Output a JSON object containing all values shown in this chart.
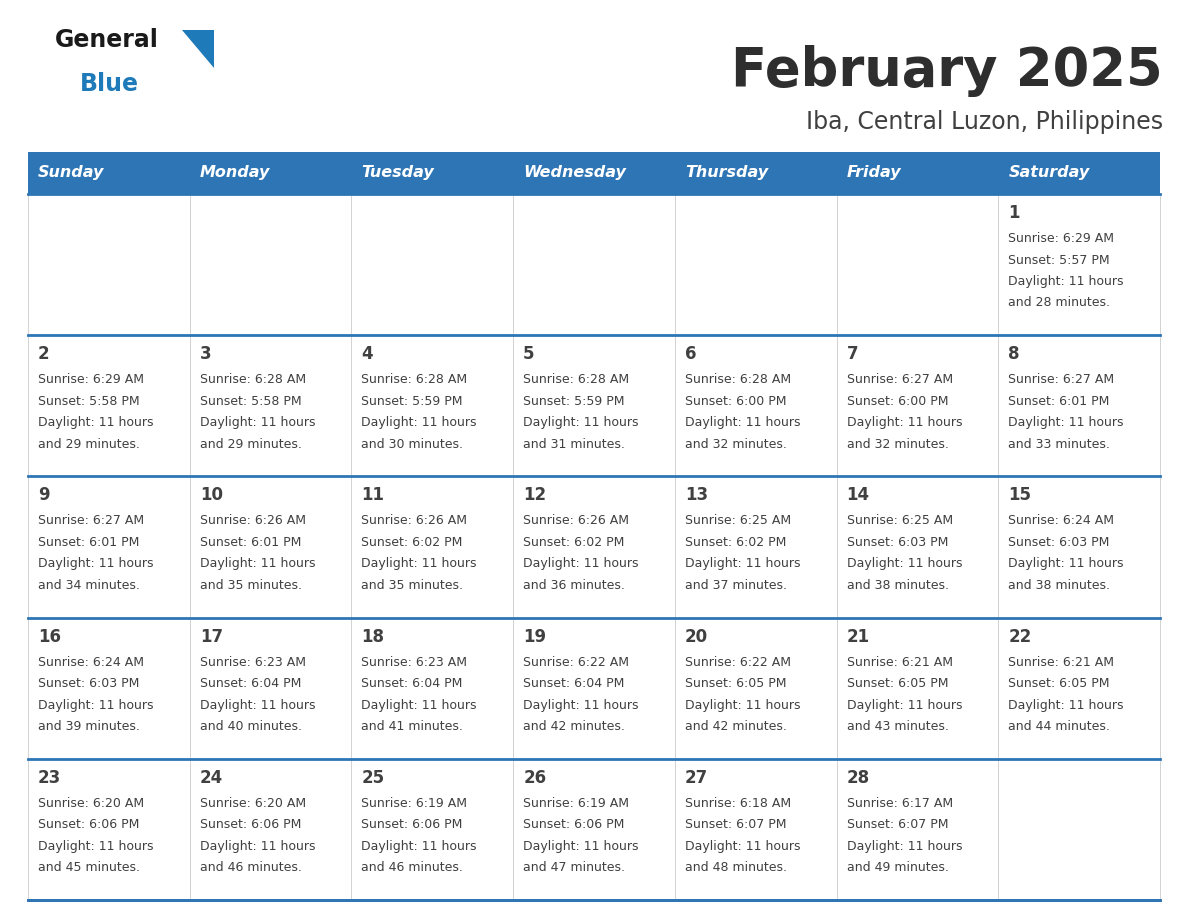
{
  "title": "February 2025",
  "subtitle": "Iba, Central Luzon, Philippines",
  "days_of_week": [
    "Sunday",
    "Monday",
    "Tuesday",
    "Wednesday",
    "Thursday",
    "Friday",
    "Saturday"
  ],
  "header_bg": "#2e75b6",
  "header_text_color": "#ffffff",
  "cell_bg": "#ffffff",
  "row_line_color": "#2e75b6",
  "text_color": "#404040",
  "day_num_color": "#404040",
  "title_color": "#2e2e2e",
  "subtitle_color": "#404040",
  "logo_general_color": "#1a1a1a",
  "logo_blue_color": "#1e7ab8",
  "calendar_data": [
    [
      null,
      null,
      null,
      null,
      null,
      null,
      {
        "day": 1,
        "sunrise": "6:29 AM",
        "sunset": "5:57 PM",
        "daylight": "11 hours",
        "daylight2": "and 28 minutes."
      }
    ],
    [
      {
        "day": 2,
        "sunrise": "6:29 AM",
        "sunset": "5:58 PM",
        "daylight": "11 hours",
        "daylight2": "and 29 minutes."
      },
      {
        "day": 3,
        "sunrise": "6:28 AM",
        "sunset": "5:58 PM",
        "daylight": "11 hours",
        "daylight2": "and 29 minutes."
      },
      {
        "day": 4,
        "sunrise": "6:28 AM",
        "sunset": "5:59 PM",
        "daylight": "11 hours",
        "daylight2": "and 30 minutes."
      },
      {
        "day": 5,
        "sunrise": "6:28 AM",
        "sunset": "5:59 PM",
        "daylight": "11 hours",
        "daylight2": "and 31 minutes."
      },
      {
        "day": 6,
        "sunrise": "6:28 AM",
        "sunset": "6:00 PM",
        "daylight": "11 hours",
        "daylight2": "and 32 minutes."
      },
      {
        "day": 7,
        "sunrise": "6:27 AM",
        "sunset": "6:00 PM",
        "daylight": "11 hours",
        "daylight2": "and 32 minutes."
      },
      {
        "day": 8,
        "sunrise": "6:27 AM",
        "sunset": "6:01 PM",
        "daylight": "11 hours",
        "daylight2": "and 33 minutes."
      }
    ],
    [
      {
        "day": 9,
        "sunrise": "6:27 AM",
        "sunset": "6:01 PM",
        "daylight": "11 hours",
        "daylight2": "and 34 minutes."
      },
      {
        "day": 10,
        "sunrise": "6:26 AM",
        "sunset": "6:01 PM",
        "daylight": "11 hours",
        "daylight2": "and 35 minutes."
      },
      {
        "day": 11,
        "sunrise": "6:26 AM",
        "sunset": "6:02 PM",
        "daylight": "11 hours",
        "daylight2": "and 35 minutes."
      },
      {
        "day": 12,
        "sunrise": "6:26 AM",
        "sunset": "6:02 PM",
        "daylight": "11 hours",
        "daylight2": "and 36 minutes."
      },
      {
        "day": 13,
        "sunrise": "6:25 AM",
        "sunset": "6:02 PM",
        "daylight": "11 hours",
        "daylight2": "and 37 minutes."
      },
      {
        "day": 14,
        "sunrise": "6:25 AM",
        "sunset": "6:03 PM",
        "daylight": "11 hours",
        "daylight2": "and 38 minutes."
      },
      {
        "day": 15,
        "sunrise": "6:24 AM",
        "sunset": "6:03 PM",
        "daylight": "11 hours",
        "daylight2": "and 38 minutes."
      }
    ],
    [
      {
        "day": 16,
        "sunrise": "6:24 AM",
        "sunset": "6:03 PM",
        "daylight": "11 hours",
        "daylight2": "and 39 minutes."
      },
      {
        "day": 17,
        "sunrise": "6:23 AM",
        "sunset": "6:04 PM",
        "daylight": "11 hours",
        "daylight2": "and 40 minutes."
      },
      {
        "day": 18,
        "sunrise": "6:23 AM",
        "sunset": "6:04 PM",
        "daylight": "11 hours",
        "daylight2": "and 41 minutes."
      },
      {
        "day": 19,
        "sunrise": "6:22 AM",
        "sunset": "6:04 PM",
        "daylight": "11 hours",
        "daylight2": "and 42 minutes."
      },
      {
        "day": 20,
        "sunrise": "6:22 AM",
        "sunset": "6:05 PM",
        "daylight": "11 hours",
        "daylight2": "and 42 minutes."
      },
      {
        "day": 21,
        "sunrise": "6:21 AM",
        "sunset": "6:05 PM",
        "daylight": "11 hours",
        "daylight2": "and 43 minutes."
      },
      {
        "day": 22,
        "sunrise": "6:21 AM",
        "sunset": "6:05 PM",
        "daylight": "11 hours",
        "daylight2": "and 44 minutes."
      }
    ],
    [
      {
        "day": 23,
        "sunrise": "6:20 AM",
        "sunset": "6:06 PM",
        "daylight": "11 hours",
        "daylight2": "and 45 minutes."
      },
      {
        "day": 24,
        "sunrise": "6:20 AM",
        "sunset": "6:06 PM",
        "daylight": "11 hours",
        "daylight2": "and 46 minutes."
      },
      {
        "day": 25,
        "sunrise": "6:19 AM",
        "sunset": "6:06 PM",
        "daylight": "11 hours",
        "daylight2": "and 46 minutes."
      },
      {
        "day": 26,
        "sunrise": "6:19 AM",
        "sunset": "6:06 PM",
        "daylight": "11 hours",
        "daylight2": "and 47 minutes."
      },
      {
        "day": 27,
        "sunrise": "6:18 AM",
        "sunset": "6:07 PM",
        "daylight": "11 hours",
        "daylight2": "and 48 minutes."
      },
      {
        "day": 28,
        "sunrise": "6:17 AM",
        "sunset": "6:07 PM",
        "daylight": "11 hours",
        "daylight2": "and 49 minutes."
      },
      null
    ]
  ],
  "fig_width": 11.88,
  "fig_height": 9.18,
  "dpi": 100
}
